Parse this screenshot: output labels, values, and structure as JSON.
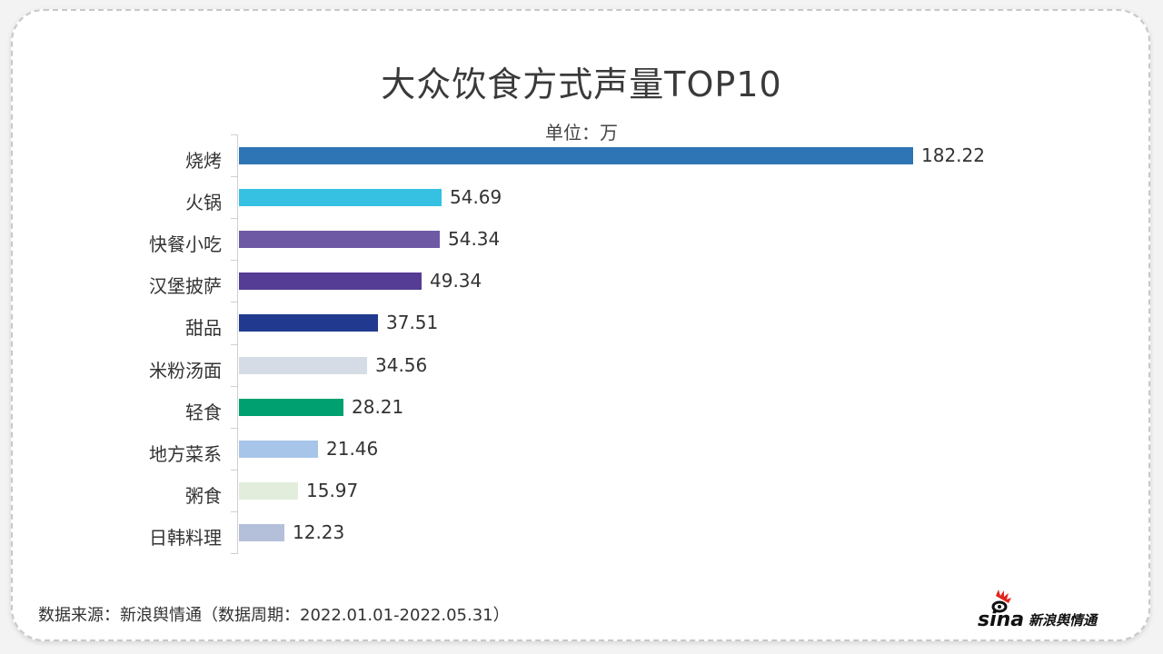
{
  "header": {
    "title": "大众饮食方式声量TOP10",
    "unit_label": "单位：万"
  },
  "footer": {
    "source": "数据来源：新浪舆情通（数据周期：2022.01.01-2022.05.31）",
    "logo_text": "sina",
    "logo_subtext": "新浪舆情通"
  },
  "chart_data": {
    "type": "bar",
    "orientation": "horizontal",
    "title": "大众饮食方式声量TOP10",
    "subtitle": "单位：万",
    "xlabel": "",
    "ylabel": "",
    "grid": false,
    "legend": "none",
    "categories": [
      "烧烤",
      "火锅",
      "快餐小吃",
      "汉堡披萨",
      "甜品",
      "米粉汤面",
      "轻食",
      "地方菜系",
      "粥食",
      "日韩料理"
    ],
    "values": [
      182.22,
      54.69,
      54.34,
      49.34,
      37.51,
      34.56,
      28.21,
      21.46,
      15.97,
      12.23
    ],
    "labels": [
      "182.22",
      "54.69",
      "54.34",
      "49.34",
      "37.51",
      "34.56",
      "28.21",
      "21.46",
      "15.97",
      "12.23"
    ],
    "colors": [
      "#2e75b6",
      "#36c0e2",
      "#6e5aa4",
      "#553c94",
      "#213a90",
      "#d5dce6",
      "#00a070",
      "#a7c5e8",
      "#e2eedb",
      "#b4bfda"
    ],
    "source": "数据来源：新浪舆情通（数据周期：2022.01.01-2022.05.31）"
  }
}
